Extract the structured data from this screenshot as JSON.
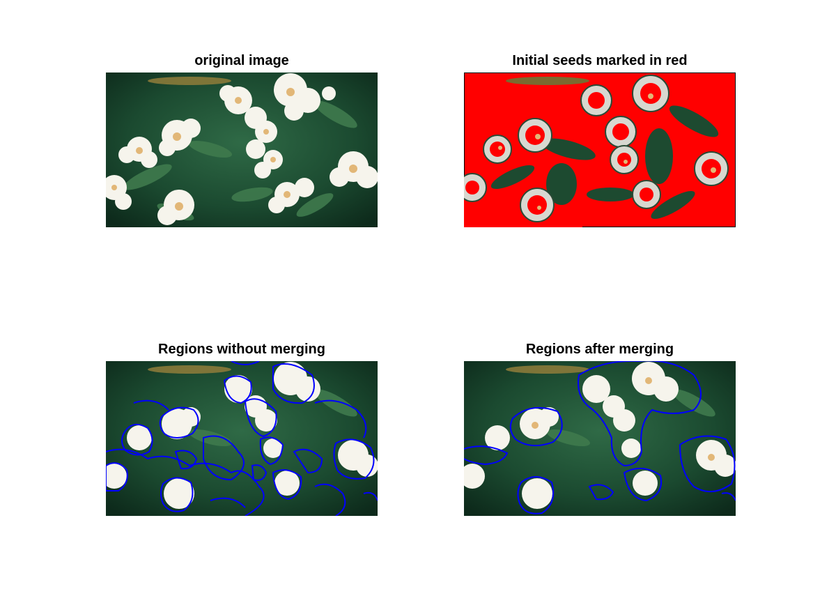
{
  "figure": {
    "panels": [
      {
        "title": "original image"
      },
      {
        "title": "Initial seeds marked in red"
      },
      {
        "title": "Regions without merging"
      },
      {
        "title": "Regions after merging"
      }
    ]
  },
  "colors": {
    "background": "#ffffff",
    "foliage_dark": "#123a26",
    "foliage_mid": "#2f6a46",
    "flower": "#f6f4ec",
    "flower_center": "#e2b777",
    "seed_red": "#ff0000",
    "boundary_blue": "#0000ff"
  }
}
